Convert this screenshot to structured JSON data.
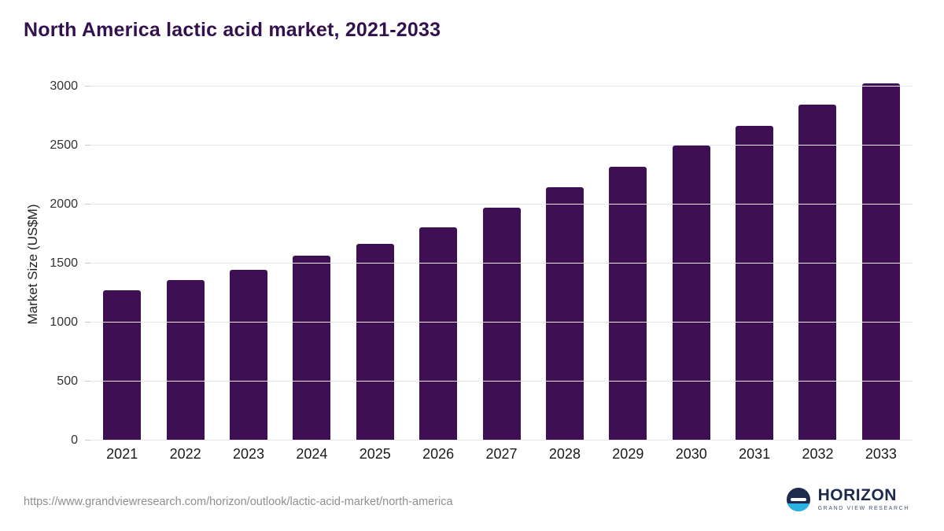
{
  "title": "North America lactic acid market, 2021-2033",
  "footer": {
    "source_url": "https://www.grandviewresearch.com/horizon/outlook/lactic-acid-market/north-america",
    "logo": {
      "name": "HORIZON",
      "subtitle": "GRAND VIEW RESEARCH"
    }
  },
  "colors": {
    "bar": "#3e1053",
    "title": "#33104e",
    "grid": "#e8e8e8",
    "logo_navy": "#1c2b4d",
    "logo_blue": "#2bb3e0"
  },
  "chart_data": {
    "type": "bar",
    "title": "North America lactic acid market, 2021-2033",
    "categories": [
      "2021",
      "2022",
      "2023",
      "2024",
      "2025",
      "2026",
      "2027",
      "2028",
      "2029",
      "2030",
      "2031",
      "2032",
      "2033"
    ],
    "values": [
      1275,
      1360,
      1445,
      1565,
      1670,
      1805,
      1975,
      2145,
      2320,
      2500,
      2670,
      2850,
      3025
    ],
    "xlabel": "",
    "ylabel": "Market Size (US$M)",
    "ylim": [
      0,
      3000
    ],
    "yticks": [
      0,
      500,
      1000,
      1500,
      2000,
      2500,
      3000
    ],
    "grid": true,
    "legend": false
  }
}
